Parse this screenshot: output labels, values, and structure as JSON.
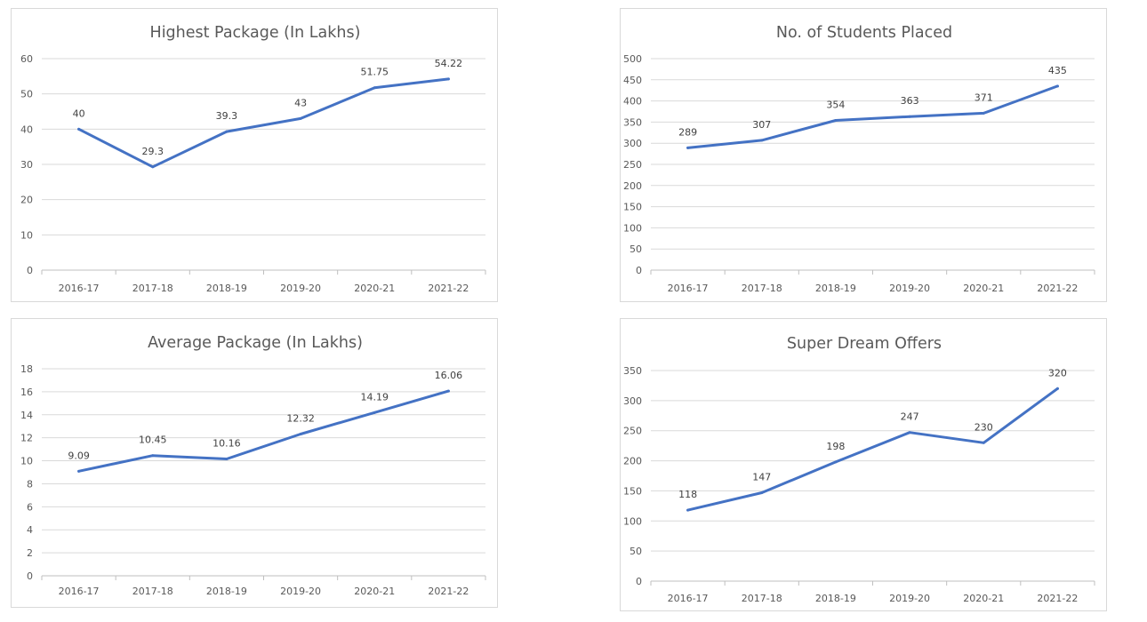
{
  "chart_data": [
    {
      "type": "line",
      "title": "Highest Package (In Lakhs)",
      "categories": [
        "2016-17",
        "2017-18",
        "2018-19",
        "2019-20",
        "2020-21",
        "2021-22"
      ],
      "series": [
        {
          "values": [
            40,
            29.3,
            39.3,
            43,
            51.75,
            54.22
          ]
        }
      ],
      "data_labels": [
        "40",
        "29.3",
        "39.3",
        "43",
        "51.75",
        "54.22"
      ],
      "ylim": [
        0,
        60
      ],
      "yticks": [
        "0",
        "10",
        "20",
        "30",
        "40",
        "50",
        "60"
      ],
      "xlabel": "",
      "ylabel": "",
      "grid": true,
      "legend": "none",
      "color": "#4472C4"
    },
    {
      "type": "line",
      "title": "No. of Students Placed",
      "categories": [
        "2016-17",
        "2017-18",
        "2018-19",
        "2019-20",
        "2020-21",
        "2021-22"
      ],
      "series": [
        {
          "values": [
            289,
            307,
            354,
            363,
            371,
            435
          ]
        }
      ],
      "data_labels": [
        "289",
        "307",
        "354",
        "363",
        "371",
        "435"
      ],
      "ylim": [
        0,
        500
      ],
      "yticks": [
        "0",
        "50",
        "100",
        "150",
        "200",
        "250",
        "300",
        "350",
        "400",
        "450",
        "500"
      ],
      "xlabel": "",
      "ylabel": "",
      "grid": true,
      "legend": "none",
      "color": "#4472C4"
    },
    {
      "type": "line",
      "title": "Average Package (In Lakhs)",
      "categories": [
        "2016-17",
        "2017-18",
        "2018-19",
        "2019-20",
        "2020-21",
        "2021-22"
      ],
      "series": [
        {
          "values": [
            9.09,
            10.45,
            10.16,
            12.32,
            14.19,
            16.06
          ]
        }
      ],
      "data_labels": [
        "9.09",
        "10.45",
        "10.16",
        "12.32",
        "14.19",
        "16.06"
      ],
      "ylim": [
        0,
        18
      ],
      "yticks": [
        "0",
        "2",
        "4",
        "6",
        "8",
        "10",
        "12",
        "14",
        "16",
        "18"
      ],
      "xlabel": "",
      "ylabel": "",
      "grid": true,
      "legend": "none",
      "color": "#4472C4"
    },
    {
      "type": "line",
      "title": "Super Dream Offers",
      "categories": [
        "2016-17",
        "2017-18",
        "2018-19",
        "2019-20",
        "2020-21",
        "2021-22"
      ],
      "series": [
        {
          "values": [
            118,
            147,
            198,
            247,
            230,
            320
          ]
        }
      ],
      "data_labels": [
        "118",
        "147",
        "198",
        "247",
        "230",
        "320"
      ],
      "ylim": [
        0,
        350
      ],
      "yticks": [
        "0",
        "50",
        "100",
        "150",
        "200",
        "250",
        "300",
        "350"
      ],
      "xlabel": "",
      "ylabel": "",
      "grid": true,
      "legend": "none",
      "color": "#4472C4"
    }
  ]
}
